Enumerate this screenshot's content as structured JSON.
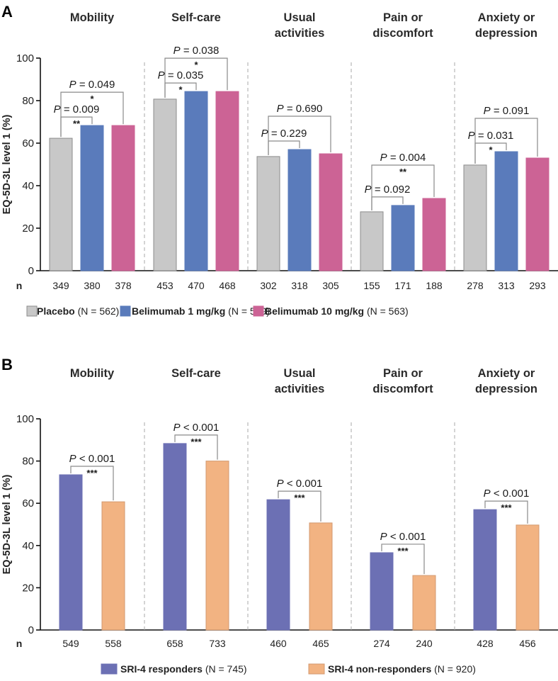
{
  "chart_data": [
    {
      "type": "bar",
      "panel": "A",
      "categories": [
        "Mobility",
        "Self-care",
        "Usual activities",
        "Pain or discomfort",
        "Anxiety or depression"
      ],
      "category_titles": [
        [
          "Mobility"
        ],
        [
          "Self-care"
        ],
        [
          "Usual",
          "activities"
        ],
        [
          "Pain or",
          "discomfort"
        ],
        [
          "Anxiety or",
          "depression"
        ]
      ],
      "ylabel": "EQ-5D-3L level 1 (%)",
      "xlabel": "",
      "ylim": [
        0,
        100
      ],
      "yticks": [
        0,
        20,
        40,
        60,
        80,
        100
      ],
      "n_label": "n",
      "series": [
        {
          "name": "Placebo",
          "n_total": "(N = 562)",
          "color": "#c8c8c8",
          "edge": "#8c8c8c",
          "values": [
            62.3,
            80.7,
            53.7,
            27.7,
            49.7
          ],
          "n": [
            349,
            453,
            302,
            155,
            278
          ]
        },
        {
          "name": "Belimumab 1 mg/kg",
          "n_total": "(N = 559)",
          "color": "#5a7bbb",
          "edge": "#5a7bbb",
          "values": [
            68.3,
            84.3,
            57.0,
            30.7,
            56.0
          ],
          "n": [
            380,
            470,
            318,
            171,
            313
          ]
        },
        {
          "name": "Belimumab 10 mg/kg",
          "n_total": "(N = 563)",
          "color": "#cc6395",
          "edge": "#cc6395",
          "values": [
            68.3,
            84.3,
            55.0,
            34.0,
            53.0
          ],
          "n": [
            378,
            468,
            305,
            188,
            293
          ]
        }
      ],
      "comparisons": [
        [
          {
            "from": 0,
            "to": 1,
            "label": "P = 0.009",
            "stars": "**"
          },
          {
            "from": 0,
            "to": 2,
            "label": "P = 0.049",
            "stars": "*"
          }
        ],
        [
          {
            "from": 0,
            "to": 1,
            "label": "P = 0.035",
            "stars": "*"
          },
          {
            "from": 0,
            "to": 2,
            "label": "P = 0.038",
            "stars": "*"
          }
        ],
        [
          {
            "from": 0,
            "to": 1,
            "label": "P = 0.229",
            "stars": ""
          },
          {
            "from": 0,
            "to": 2,
            "label": "P = 0.690",
            "stars": ""
          }
        ],
        [
          {
            "from": 0,
            "to": 1,
            "label": "P = 0.092",
            "stars": ""
          },
          {
            "from": 0,
            "to": 2,
            "label": "P = 0.004",
            "stars": "**"
          }
        ],
        [
          {
            "from": 0,
            "to": 1,
            "label": "P = 0.031",
            "stars": "*"
          },
          {
            "from": 0,
            "to": 2,
            "label": "P = 0.091",
            "stars": ""
          }
        ]
      ],
      "legend": "bottom"
    },
    {
      "type": "bar",
      "panel": "B",
      "categories": [
        "Mobility",
        "Self-care",
        "Usual activities",
        "Pain or discomfort",
        "Anxiety or depression"
      ],
      "category_titles": [
        [
          "Mobility"
        ],
        [
          "Self-care"
        ],
        [
          "Usual",
          "activities"
        ],
        [
          "Pain or",
          "discomfort"
        ],
        [
          "Anxiety or",
          "depression"
        ]
      ],
      "ylabel": "EQ-5D-3L level 1 (%)",
      "xlabel": "",
      "ylim": [
        0,
        100
      ],
      "yticks": [
        0,
        20,
        40,
        60,
        80,
        100
      ],
      "n_label": "n",
      "series": [
        {
          "name": "SRI-4 responders",
          "n_total": "(N = 745)",
          "color": "#6c70b4",
          "edge": "#6c70b4",
          "values": [
            73.5,
            88.3,
            61.7,
            36.6,
            57.0
          ],
          "n": [
            549,
            658,
            460,
            274,
            428
          ]
        },
        {
          "name": "SRI-4 non-responders",
          "n_total": "(N = 920)",
          "color": "#f2b382",
          "edge": "#d39a70",
          "values": [
            60.7,
            80.0,
            50.7,
            25.8,
            49.7
          ],
          "n": [
            558,
            733,
            465,
            240,
            456
          ]
        }
      ],
      "comparisons": [
        [
          {
            "from": 0,
            "to": 1,
            "label": "P < 0.001",
            "stars": "***"
          }
        ],
        [
          {
            "from": 0,
            "to": 1,
            "label": "P < 0.001",
            "stars": "***"
          }
        ],
        [
          {
            "from": 0,
            "to": 1,
            "label": "P < 0.001",
            "stars": "***"
          }
        ],
        [
          {
            "from": 0,
            "to": 1,
            "label": "P < 0.001",
            "stars": "***"
          }
        ],
        [
          {
            "from": 0,
            "to": 1,
            "label": "P < 0.001",
            "stars": "***"
          }
        ]
      ],
      "legend": "bottom"
    }
  ]
}
